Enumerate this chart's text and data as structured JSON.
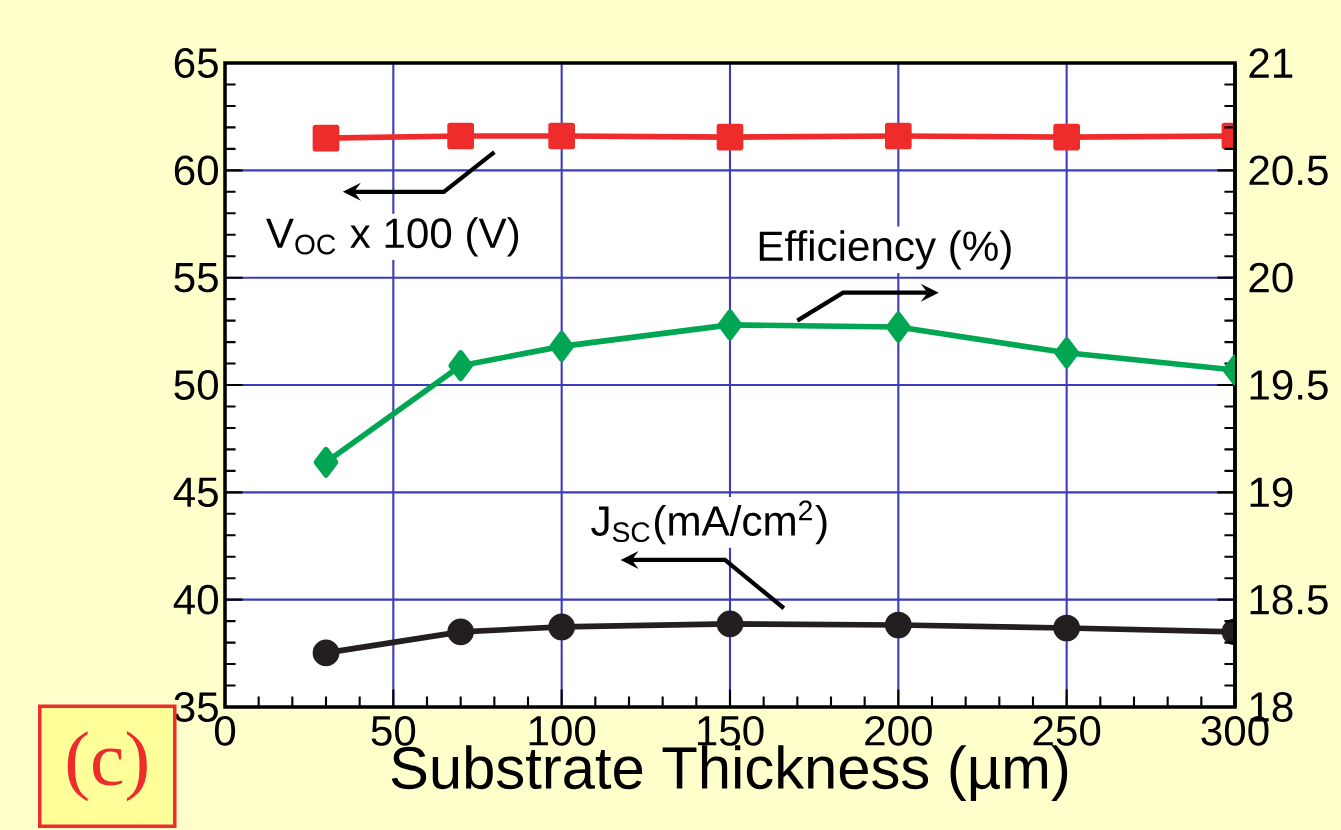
{
  "chart_data": {
    "type": "line",
    "xlabel": "Substrate Thickness (µm)",
    "x": [
      30,
      70,
      100,
      150,
      200,
      250,
      300
    ],
    "xlim": [
      0,
      300
    ],
    "xticks": [
      0,
      50,
      100,
      150,
      200,
      250,
      300
    ],
    "ylim": [
      35,
      65
    ],
    "yticks": [
      35,
      40,
      45,
      50,
      55,
      60,
      65
    ],
    "y2lim": [
      18,
      21
    ],
    "y2ticks": [
      18,
      18.5,
      19,
      19.5,
      20,
      20.5,
      21
    ],
    "grid": true,
    "series": [
      {
        "name": "V$_{OC}$ x 100 (V)",
        "color": "#ee2c2c",
        "marker": "square",
        "values": [
          61.5,
          61.6,
          61.6,
          61.55,
          61.6,
          61.55,
          61.6
        ]
      },
      {
        "name": "Efficiency (%)",
        "color": "#00a651",
        "marker": "diamond",
        "axis": "y2",
        "values": [
          19.14,
          19.59,
          19.68,
          19.78,
          19.77,
          19.65,
          19.57
        ]
      },
      {
        "name": "J$_{SC}$(mA/cm$^{2}$)",
        "color": "#231f20",
        "marker": "circle",
        "values": [
          37.52,
          38.5,
          38.73,
          38.87,
          38.82,
          38.68,
          38.5
        ]
      }
    ],
    "annotations": [
      "(c)"
    ]
  }
}
